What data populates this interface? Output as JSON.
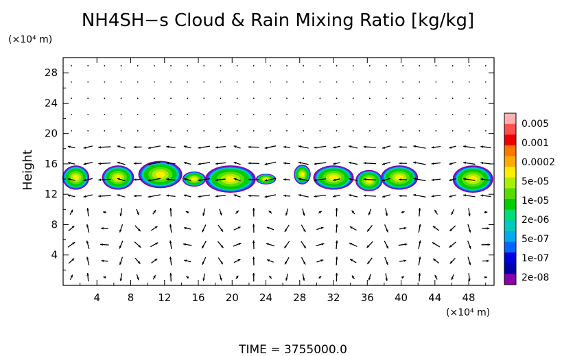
{
  "chart_data": {
    "type": "heatmap",
    "title": "NH4SH−s Cloud & Rain Mixing Ratio [kg/kg]",
    "ylabel": "Height",
    "y_unit": "(×10⁴ m)",
    "x_unit": "(×10⁴ m)",
    "time_label": "TIME  =  3755000.0",
    "xlim": [
      0,
      51
    ],
    "ylim": [
      0,
      30
    ],
    "x_ticks": [
      "4",
      "8",
      "12",
      "16",
      "20",
      "24",
      "28",
      "32",
      "36",
      "40",
      "44",
      "48"
    ],
    "y_ticks": [
      "4",
      "8",
      "12",
      "16",
      "20",
      "24",
      "28"
    ],
    "colorbar": {
      "labels": [
        "0.005",
        "0.001",
        "0.0002",
        "5e-05",
        "1e-05",
        "2e-06",
        "5e-07",
        "1e-07",
        "2e-08"
      ],
      "colors": [
        "#ffb0b0",
        "#ff5050",
        "#ee0000",
        "#ff7700",
        "#ffaa00",
        "#ffee00",
        "#aaee00",
        "#55dd00",
        "#00cc00",
        "#00dd77",
        "#00ccbb",
        "#00aaee",
        "#0066ff",
        "#0000dd",
        "#0000aa",
        "#8800aa"
      ]
    },
    "cloud_blobs": [
      {
        "x": 1.5,
        "y": 14.2,
        "w": 1.6,
        "h": 1.6
      },
      {
        "x": 6.5,
        "y": 14.2,
        "w": 1.9,
        "h": 1.6
      },
      {
        "x": 11.5,
        "y": 14.6,
        "w": 2.6,
        "h": 1.8
      },
      {
        "x": 15.5,
        "y": 14.0,
        "w": 1.4,
        "h": 1.0
      },
      {
        "x": 19.8,
        "y": 14.0,
        "w": 3.0,
        "h": 1.8
      },
      {
        "x": 24.0,
        "y": 14.0,
        "w": 1.2,
        "h": 0.7
      },
      {
        "x": 28.3,
        "y": 14.6,
        "w": 1.0,
        "h": 1.3
      },
      {
        "x": 32.0,
        "y": 14.2,
        "w": 2.4,
        "h": 1.6
      },
      {
        "x": 36.2,
        "y": 13.8,
        "w": 1.6,
        "h": 1.4
      },
      {
        "x": 39.8,
        "y": 14.2,
        "w": 2.2,
        "h": 1.6
      },
      {
        "x": 48.5,
        "y": 14.0,
        "w": 2.4,
        "h": 1.8
      }
    ]
  }
}
